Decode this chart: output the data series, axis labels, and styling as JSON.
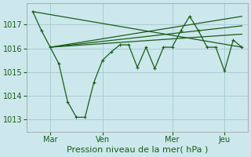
{
  "bg_color": "#cce8ec",
  "grid_color": "#aacdd4",
  "line_color": "#1a5c1a",
  "xlabel": "Pression niveau de la mer( hPa )",
  "xlabel_fontsize": 8,
  "ylim": [
    1012.5,
    1017.9
  ],
  "yticks": [
    1013,
    1014,
    1015,
    1016,
    1017
  ],
  "ytick_fontsize": 7,
  "xtick_labels": [
    "Mar",
    "Ven",
    "Mer",
    "Jeu"
  ],
  "xtick_positions": [
    12,
    48,
    96,
    132
  ],
  "total_hours": 144,
  "straight_lines": [
    {
      "x": [
        0,
        144
      ],
      "y": [
        1017.55,
        1016.05
      ]
    },
    {
      "x": [
        12,
        144
      ],
      "y": [
        1016.05,
        1016.6
      ]
    },
    {
      "x": [
        12,
        144
      ],
      "y": [
        1016.05,
        1016.95
      ]
    },
    {
      "x": [
        12,
        144
      ],
      "y": [
        1016.05,
        1017.35
      ]
    }
  ],
  "data_line_x": [
    0,
    6,
    12,
    18,
    24,
    30,
    36,
    42,
    48,
    54,
    60,
    66,
    72,
    78,
    84,
    90,
    96,
    102,
    108,
    114,
    120,
    126,
    132,
    138,
    144
  ],
  "data_line_y": [
    1017.55,
    1016.75,
    1016.05,
    1015.35,
    1013.75,
    1013.1,
    1013.1,
    1014.55,
    1015.5,
    1015.85,
    1016.15,
    1016.15,
    1015.2,
    1016.05,
    1015.15,
    1016.05,
    1016.05,
    1016.75,
    1017.35,
    1016.75,
    1016.05,
    1016.05,
    1015.05,
    1016.35,
    1016.05
  ]
}
